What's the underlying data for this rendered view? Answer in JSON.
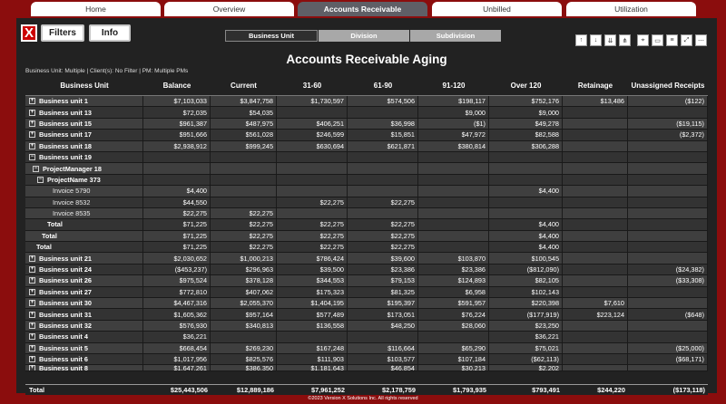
{
  "tabs": [
    {
      "label": "Home",
      "active": false
    },
    {
      "label": "Overview",
      "active": false
    },
    {
      "label": "Accounts Receivable",
      "active": true
    },
    {
      "label": "Unbilled",
      "active": false
    },
    {
      "label": "Utilization",
      "active": false
    }
  ],
  "toolbar": {
    "filters_label": "Filters",
    "info_label": "Info",
    "logo_text": "X"
  },
  "segments": [
    {
      "label": "Business Unit",
      "selected": true
    },
    {
      "label": "Division",
      "selected": false
    },
    {
      "label": "Subdivision",
      "selected": false
    }
  ],
  "visual_icons": [
    "drill-up-icon",
    "drill-down-icon",
    "expand-level-icon",
    "hierarchy-icon",
    "pin-icon",
    "comment-icon",
    "filter-icon",
    "focus-mode-icon",
    "more-options-icon"
  ],
  "report": {
    "title": "Accounts Receivable Aging",
    "filter_summary": "Business Unit: Multiple | Client(s): No Filter | PM: Multiple PMs"
  },
  "table": {
    "columns": [
      "Business Unit",
      "Balance",
      "Current",
      "31-60",
      "61-90",
      "91-120",
      "Over 120",
      "Retainage",
      "Unassigned Receipts"
    ],
    "rows": [
      {
        "kind": "unit",
        "expander": "+",
        "cells": [
          "Business unit 1",
          "$7,103,033",
          "$3,847,758",
          "$1,730,597",
          "$574,506",
          "$198,117",
          "$752,176",
          "$13,486",
          "($122)"
        ]
      },
      {
        "kind": "unit",
        "expander": "+",
        "cells": [
          "Business unit 13",
          "$72,035",
          "$54,035",
          "",
          "",
          "$9,000",
          "$9,000",
          "",
          ""
        ]
      },
      {
        "kind": "unit",
        "expander": "+",
        "cells": [
          "Business unit 15",
          "$961,387",
          "$487,975",
          "$406,251",
          "$36,998",
          "($1)",
          "$49,278",
          "",
          "($19,115)"
        ]
      },
      {
        "kind": "unit",
        "expander": "+",
        "cells": [
          "Business unit 17",
          "$951,666",
          "$561,028",
          "$246,599",
          "$15,851",
          "$47,972",
          "$82,588",
          "",
          "($2,372)"
        ]
      },
      {
        "kind": "unit",
        "expander": "+",
        "cells": [
          "Business unit 18",
          "$2,938,912",
          "$999,245",
          "$630,694",
          "$621,871",
          "$380,814",
          "$306,288",
          "",
          ""
        ]
      },
      {
        "kind": "unit",
        "expander": "−",
        "cells": [
          "Business unit 19",
          "",
          "",
          "",
          "",
          "",
          "",
          "",
          ""
        ]
      },
      {
        "kind": "pm",
        "expander": "−",
        "cells": [
          "ProjectManager 18",
          "",
          "",
          "",
          "",
          "",
          "",
          "",
          ""
        ]
      },
      {
        "kind": "project",
        "expander": "−",
        "cells": [
          "ProjectName 373",
          "",
          "",
          "",
          "",
          "",
          "",
          "",
          ""
        ]
      },
      {
        "kind": "invoice",
        "expander": "",
        "cells": [
          "Invoice 5790",
          "$4,400",
          "",
          "",
          "",
          "",
          "$4,400",
          "",
          ""
        ]
      },
      {
        "kind": "invoice",
        "expander": "",
        "cells": [
          "Invoice 8532",
          "$44,550",
          "",
          "$22,275",
          "$22,275",
          "",
          "",
          "",
          ""
        ]
      },
      {
        "kind": "invoice",
        "expander": "",
        "cells": [
          "Invoice 8535",
          "$22,275",
          "$22,275",
          "",
          "",
          "",
          "",
          "",
          ""
        ]
      },
      {
        "kind": "tot1",
        "expander": "",
        "cells": [
          "Total",
          "$71,225",
          "$22,275",
          "$22,275",
          "$22,275",
          "",
          "$4,400",
          "",
          ""
        ]
      },
      {
        "kind": "tot2",
        "expander": "",
        "cells": [
          "Total",
          "$71,225",
          "$22,275",
          "$22,275",
          "$22,275",
          "",
          "$4,400",
          "",
          ""
        ]
      },
      {
        "kind": "tot3",
        "expander": "",
        "cells": [
          "Total",
          "$71,225",
          "$22,275",
          "$22,275",
          "$22,275",
          "",
          "$4,400",
          "",
          ""
        ]
      },
      {
        "kind": "unit",
        "expander": "+",
        "cells": [
          "Business unit 21",
          "$2,030,652",
          "$1,000,213",
          "$786,424",
          "$39,600",
          "$103,870",
          "$100,545",
          "",
          ""
        ]
      },
      {
        "kind": "unit",
        "expander": "+",
        "cells": [
          "Business unit 24",
          "($453,237)",
          "$296,963",
          "$39,500",
          "$23,386",
          "$23,386",
          "($812,090)",
          "",
          "($24,382)"
        ]
      },
      {
        "kind": "unit",
        "expander": "+",
        "cells": [
          "Business unit 26",
          "$975,524",
          "$378,128",
          "$344,553",
          "$79,153",
          "$124,893",
          "$82,105",
          "",
          "($33,308)"
        ]
      },
      {
        "kind": "unit",
        "expander": "+",
        "cells": [
          "Business unit 27",
          "$772,810",
          "$407,062",
          "$175,323",
          "$81,325",
          "$6,958",
          "$102,143",
          "",
          ""
        ]
      },
      {
        "kind": "unit",
        "expander": "+",
        "cells": [
          "Business unit 30",
          "$4,467,316",
          "$2,055,370",
          "$1,404,195",
          "$195,397",
          "$591,957",
          "$220,398",
          "$7,610",
          ""
        ]
      },
      {
        "kind": "unit",
        "expander": "+",
        "cells": [
          "Business unit 31",
          "$1,605,362",
          "$957,164",
          "$577,489",
          "$173,051",
          "$76,224",
          "($177,919)",
          "$223,124",
          "($648)"
        ]
      },
      {
        "kind": "unit",
        "expander": "+",
        "cells": [
          "Business unit 32",
          "$576,930",
          "$340,813",
          "$136,558",
          "$48,250",
          "$28,060",
          "$23,250",
          "",
          ""
        ]
      },
      {
        "kind": "unit",
        "expander": "+",
        "cells": [
          "Business unit 4",
          "$36,221",
          "",
          "",
          "",
          "",
          "$36,221",
          "",
          ""
        ]
      },
      {
        "kind": "unit",
        "expander": "+",
        "cells": [
          "Business unit 5",
          "$668,454",
          "$269,230",
          "$167,248",
          "$116,664",
          "$65,290",
          "$75,021",
          "",
          "($25,000)"
        ]
      },
      {
        "kind": "unit",
        "expander": "+",
        "cells": [
          "Business unit 6",
          "$1,017,956",
          "$825,576",
          "$111,903",
          "$103,577",
          "$107,184",
          "($62,113)",
          "",
          "($68,171)"
        ]
      },
      {
        "kind": "unit",
        "expander": "+",
        "clipped": true,
        "cells": [
          "Business unit 8",
          "$1,647,261",
          "$386,350",
          "$1,181,643",
          "$46,854",
          "$30,213",
          "$2,202",
          "",
          ""
        ]
      }
    ],
    "total": [
      "Total",
      "$25,443,506",
      "$12,889,186",
      "$7,961,252",
      "$2,178,759",
      "$1,793,935",
      "$793,491",
      "$244,220",
      "($173,118)"
    ]
  },
  "footer": "©2023 Version X Solutions Inc. All rights reserved"
}
